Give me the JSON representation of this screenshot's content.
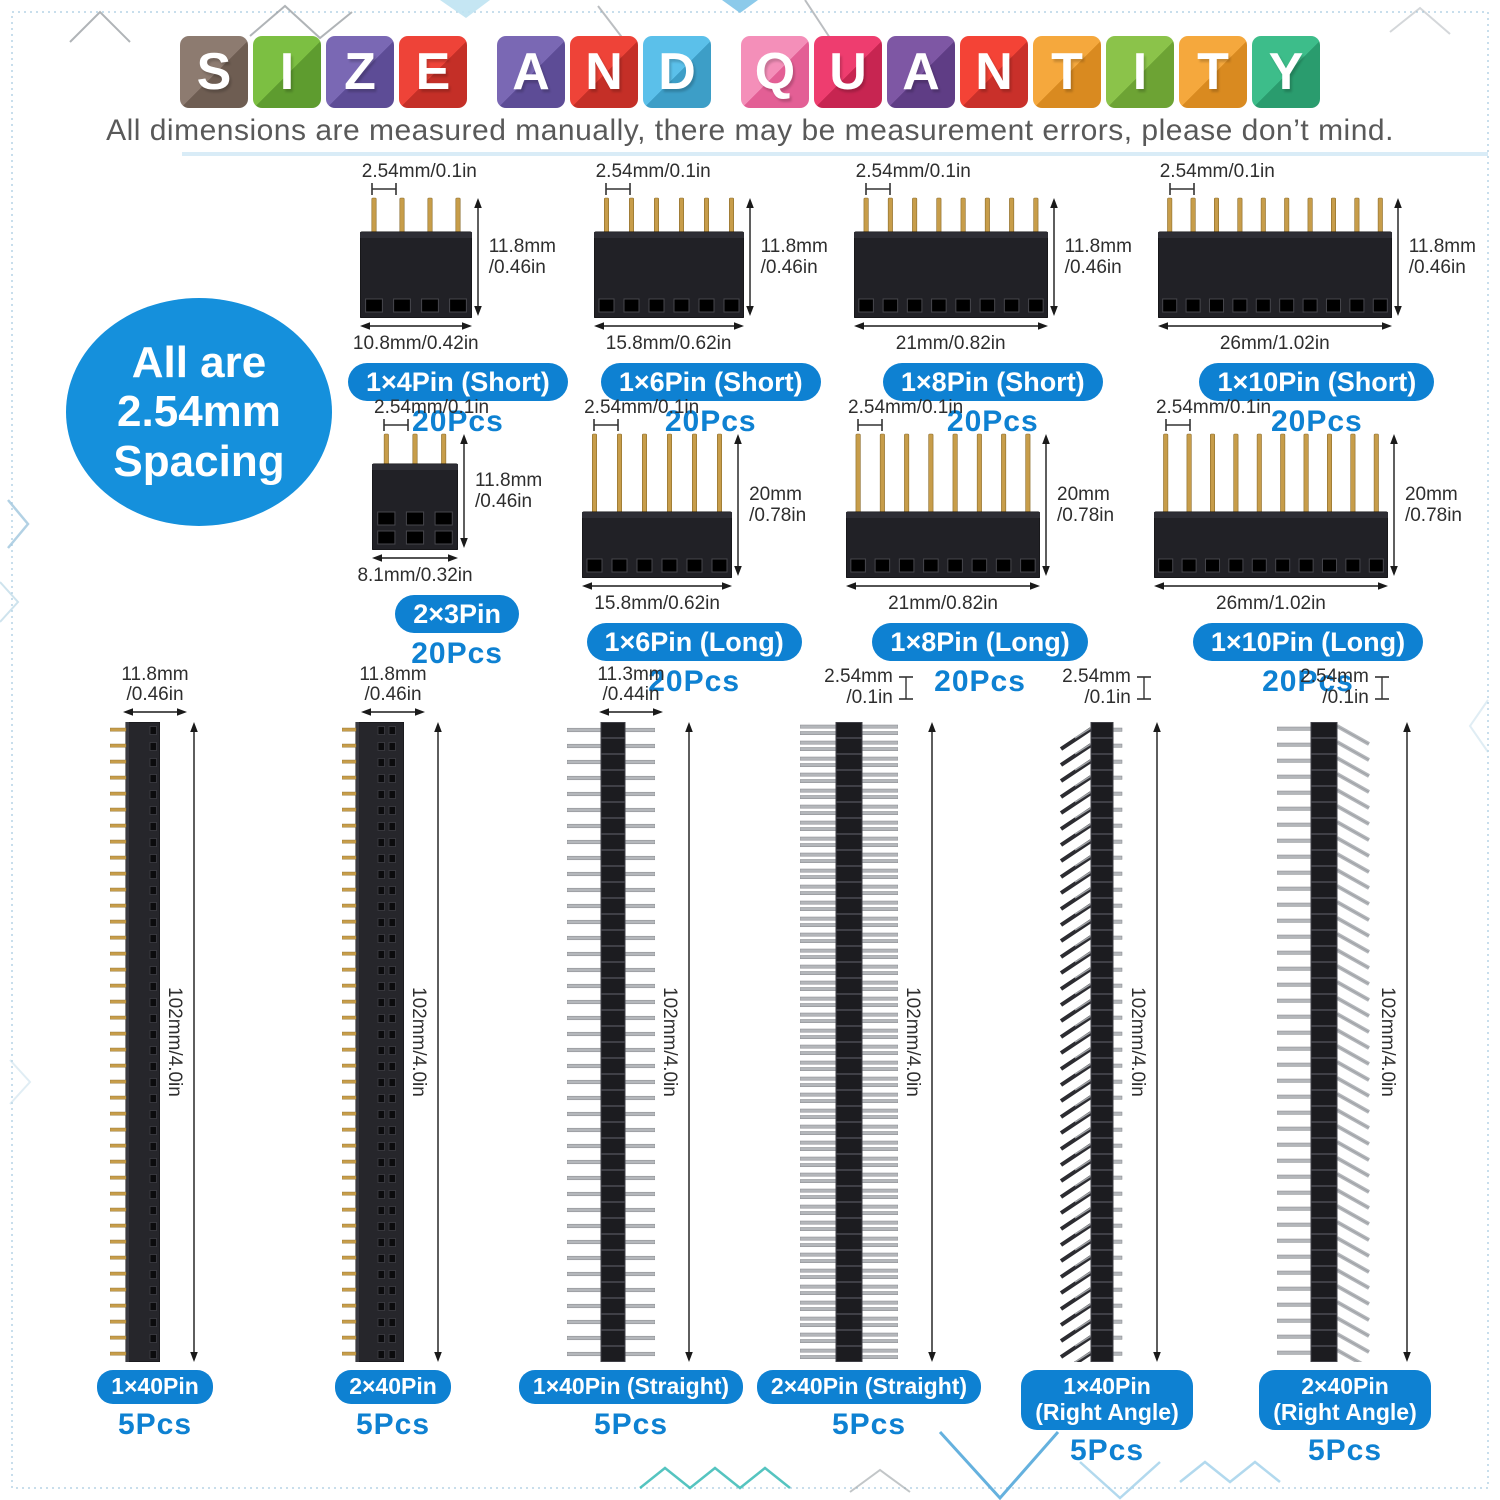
{
  "accent": "#0e81d2",
  "title": {
    "words": [
      {
        "letters": [
          {
            "ch": "S",
            "c": "#8d7b70",
            "s": "#6e5d52"
          },
          {
            "ch": "I",
            "c": "#7cbf42",
            "s": "#5e9c2f"
          },
          {
            "ch": "Z",
            "c": "#7a68b4",
            "s": "#5d4c96"
          },
          {
            "ch": "E",
            "c": "#ee4338",
            "s": "#c42f27"
          }
        ]
      },
      {
        "letters": [
          {
            "ch": "A",
            "c": "#7a68b4",
            "s": "#5d4c96"
          },
          {
            "ch": "N",
            "c": "#ee4338",
            "s": "#c42f27"
          },
          {
            "ch": "D",
            "c": "#5bc0ea",
            "s": "#3d9ec7"
          }
        ]
      },
      {
        "letters": [
          {
            "ch": "Q",
            "c": "#f48fb9",
            "s": "#e35f95"
          },
          {
            "ch": "U",
            "c": "#ee3d6f",
            "s": "#c72551"
          },
          {
            "ch": "A",
            "c": "#7e57a4",
            "s": "#5f3d85"
          },
          {
            "ch": "N",
            "c": "#f44336",
            "s": "#c9302a"
          },
          {
            "ch": "T",
            "c": "#f5a83d",
            "s": "#d98a20"
          },
          {
            "ch": "I",
            "c": "#8bc34a",
            "s": "#6da334"
          },
          {
            "ch": "T",
            "c": "#f5a83d",
            "s": "#d98a20"
          },
          {
            "ch": "Y",
            "c": "#3dbd8a",
            "s": "#2a9c6e"
          }
        ]
      }
    ]
  },
  "subtitle": "All dimensions are measured manually, there may be measurement errors, please don’t mind.",
  "badge": {
    "lines": [
      "All are",
      "2.54mm",
      "Spacing"
    ],
    "color": "#1590dc"
  },
  "top_items": [
    {
      "label": "1×4Pin (Short)",
      "qty": "20Pcs",
      "pitch": "2.54mm/0.1in",
      "side": [
        "11.8mm",
        "/0.46in"
      ],
      "width": "10.8mm/0.42in"
    },
    {
      "label": "1×6Pin (Short)",
      "qty": "20Pcs",
      "pitch": "2.54mm/0.1in",
      "side": [
        "11.8mm",
        "/0.46in"
      ],
      "width": "15.8mm/0.62in"
    },
    {
      "label": "1×8Pin (Short)",
      "qty": "20Pcs",
      "pitch": "2.54mm/0.1in",
      "side": [
        "11.8mm",
        "/0.46in"
      ],
      "width": "21mm/0.82in"
    },
    {
      "label": "1×10Pin (Short)",
      "qty": "20Pcs",
      "pitch": "2.54mm/0.1in",
      "side": [
        "11.8mm",
        "/0.46in"
      ],
      "width": "26mm/1.02in"
    }
  ],
  "mid_items": [
    {
      "label": "2×3Pin",
      "qty": "20Pcs",
      "pitch": "2.54mm/0.1in",
      "side": [
        "11.8mm",
        "/0.46in"
      ],
      "width": "8.1mm/0.32in"
    },
    {
      "label": "1×6Pin (Long)",
      "qty": "20Pcs",
      "pitch": "2.54mm/0.1in",
      "side": [
        "20mm",
        "/0.78in"
      ],
      "width": "15.8mm/0.62in"
    },
    {
      "label": "1×8Pin (Long)",
      "qty": "20Pcs",
      "pitch": "2.54mm/0.1in",
      "side": [
        "20mm",
        "/0.78in"
      ],
      "width": "21mm/0.82in"
    },
    {
      "label": "1×10Pin (Long)",
      "qty": "20Pcs",
      "pitch": "2.54mm/0.1in",
      "side": [
        "20mm",
        "/0.78in"
      ],
      "width": "26mm/1.02in"
    }
  ],
  "strips": [
    {
      "label": "1×40Pin",
      "qty": "5Pcs",
      "dim": [
        "11.8mm",
        "/0.46in"
      ],
      "len": "102mm/4.0in"
    },
    {
      "label": "2×40Pin",
      "qty": "5Pcs",
      "dim": [
        "11.8mm",
        "/0.46in"
      ],
      "len": "102mm/4.0in"
    },
    {
      "label": "1×40Pin (Straight)",
      "qty": "5Pcs",
      "dim": [
        "11.3mm",
        "/0.44in"
      ],
      "len": "102mm/4.0in"
    },
    {
      "label": "2×40Pin (Straight)",
      "qty": "5Pcs",
      "dim": [
        "2.54mm",
        "/0.1in"
      ],
      "len": "102mm/4.0in"
    },
    {
      "label": "1×40Pin\n(Right Angle)",
      "qty": "5Pcs",
      "dim": [
        "2.54mm",
        "/0.1in"
      ],
      "len": "102mm/4.0in"
    },
    {
      "label": "2×40Pin\n(Right Angle)",
      "qty": "5Pcs",
      "dim": [
        "2.54mm",
        "/0.1in"
      ],
      "len": "102mm/4.0in"
    }
  ]
}
